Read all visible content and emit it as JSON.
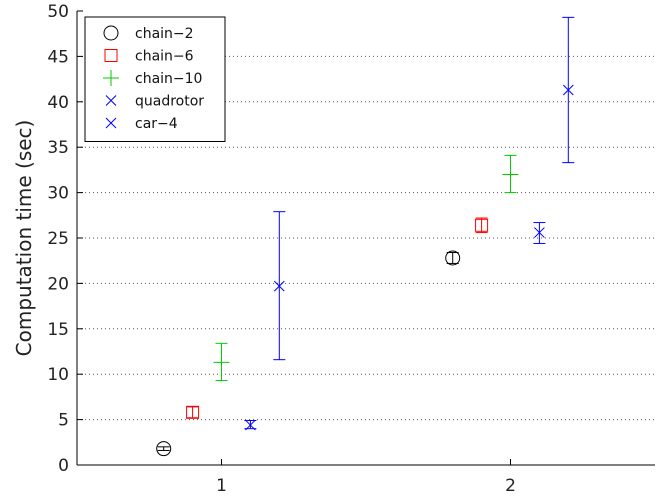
{
  "chart_data": {
    "type": "scatter",
    "title": "",
    "xlabel": "",
    "ylabel": "Computation time (sec)",
    "xlim": [
      0.5,
      2.5
    ],
    "ylim": [
      0,
      50
    ],
    "x_ticks": [
      1,
      2
    ],
    "y_ticks": [
      0,
      5,
      10,
      15,
      20,
      25,
      30,
      35,
      40,
      45,
      50
    ],
    "grid": "horizontal dotted",
    "legend_position": "top-left",
    "series": [
      {
        "name": "chain−2",
        "marker": "circle",
        "color": "#000000",
        "points": [
          {
            "x": 0.8,
            "y": 1.8,
            "lo": 1.6,
            "hi": 2.0
          },
          {
            "x": 1.8,
            "y": 22.8,
            "lo": 22.2,
            "hi": 23.4
          }
        ]
      },
      {
        "name": "chain−6",
        "marker": "square",
        "color": "#ff0000",
        "points": [
          {
            "x": 0.9,
            "y": 5.8,
            "lo": 5.2,
            "hi": 6.4
          },
          {
            "x": 1.9,
            "y": 26.4,
            "lo": 25.6,
            "hi": 27.2
          }
        ]
      },
      {
        "name": "chain−10",
        "marker": "plus",
        "color": "#00cc00",
        "points": [
          {
            "x": 1.0,
            "y": 11.3,
            "lo": 9.3,
            "hi": 13.4
          },
          {
            "x": 2.0,
            "y": 32.0,
            "lo": 30.0,
            "hi": 34.1
          }
        ]
      },
      {
        "name": "quadrotor",
        "marker": "x",
        "color": "#0000ff",
        "points": [
          {
            "x": 1.1,
            "y": 4.4,
            "lo": 4.0,
            "hi": 4.9
          },
          {
            "x": 2.1,
            "y": 25.6,
            "lo": 24.4,
            "hi": 26.7
          }
        ]
      },
      {
        "name": "car−4",
        "marker": "x",
        "color": "#0000ff",
        "points": [
          {
            "x": 1.2,
            "y": 19.7,
            "lo": 11.6,
            "hi": 27.9
          },
          {
            "x": 2.2,
            "y": 41.3,
            "lo": 33.3,
            "hi": 49.3
          }
        ]
      }
    ]
  }
}
